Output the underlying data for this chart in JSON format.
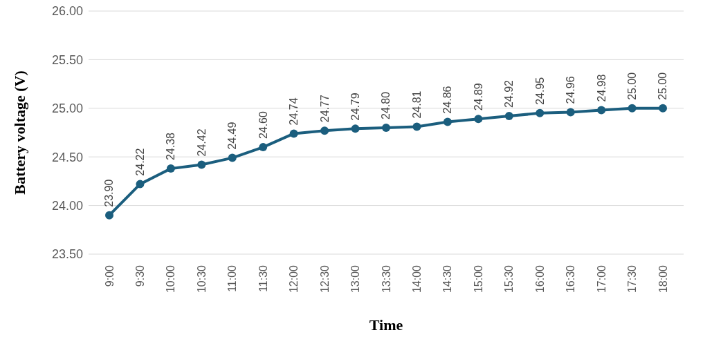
{
  "chart_data": {
    "type": "line",
    "xlabel": "Time",
    "ylabel": "Battery voltage (V)",
    "categories": [
      "9:00",
      "9:30",
      "10:00",
      "10:30",
      "11:00",
      "11:30",
      "12:00",
      "12:30",
      "13:00",
      "13:30",
      "14:00",
      "14:30",
      "15:00",
      "15:30",
      "16:00",
      "16:30",
      "17:00",
      "17:30",
      "18:00"
    ],
    "series": [
      {
        "color": "#1b5e7e",
        "values": [
          23.9,
          24.22,
          24.38,
          24.42,
          24.49,
          24.6,
          24.74,
          24.77,
          24.79,
          24.8,
          24.81,
          24.86,
          24.89,
          24.92,
          24.95,
          24.96,
          24.98,
          25.0,
          25.0
        ],
        "value_labels": [
          "23.90",
          "24.22",
          "24.38",
          "24.42",
          "24.49",
          "24.60",
          "24.74",
          "24.77",
          "24.79",
          "24.80",
          "24.81",
          "24.86",
          "24.89",
          "24.92",
          "24.95",
          "24.96",
          "24.98",
          "25.00",
          "25.00"
        ]
      }
    ],
    "ylim": [
      23.5,
      26
    ],
    "yticks": [
      {
        "value": 23.5,
        "label": "23.50"
      },
      {
        "value": 24,
        "label": "24.00"
      },
      {
        "value": 24.5,
        "label": "24.50"
      },
      {
        "value": 25,
        "label": "25.00"
      },
      {
        "value": 25.5,
        "label": "25.50"
      },
      {
        "value": 26,
        "label": "26.00"
      }
    ],
    "grid": "y",
    "marker": "circle",
    "line_style": "solid",
    "legend": false
  }
}
